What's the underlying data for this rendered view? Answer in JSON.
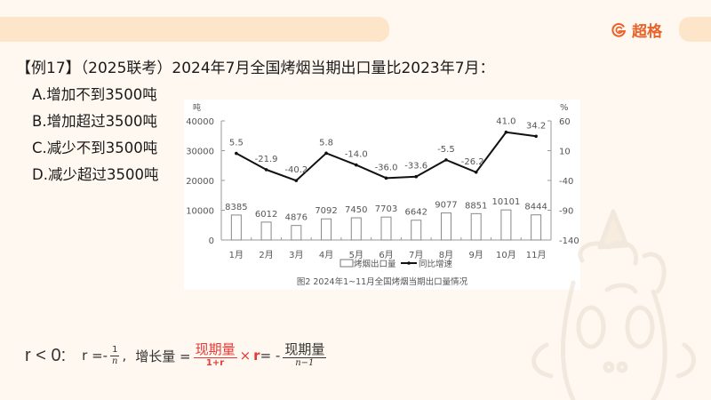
{
  "header": {
    "brand": "超格",
    "brand_icon": "g-logo-icon",
    "accent_color": "#e8622a",
    "bar_color": "#fde5c9"
  },
  "question": {
    "text": "【例17】（2025联考）2024年7月全国烤烟当期出口量比2023年7月：",
    "options": [
      {
        "key": "A",
        "label": "A.增加不到3500吨"
      },
      {
        "key": "B",
        "label": "B.增加超过3500吨"
      },
      {
        "key": "C",
        "label": "C.减少不到3500吨"
      },
      {
        "key": "D",
        "label": "D.减少超过3500吨"
      }
    ]
  },
  "chart_data": {
    "type": "bar",
    "title": "图2  2024年1~11月全国烤烟当期出口量情况",
    "categories": [
      "1月",
      "2月",
      "3月",
      "4月",
      "5月",
      "6月",
      "7月",
      "8月",
      "9月",
      "10月",
      "11月"
    ],
    "series": [
      {
        "name": "烤烟出口量",
        "type": "bar",
        "axis": "left",
        "values": [
          8385,
          6012,
          4876,
          7092,
          7450,
          7703,
          6642,
          9077,
          8851,
          10101,
          8444
        ]
      },
      {
        "name": "同比增速",
        "type": "line",
        "axis": "right",
        "values": [
          5.5,
          -21.9,
          -40.2,
          5.8,
          -14.0,
          -36.0,
          -33.6,
          -5.5,
          -26.2,
          41.0,
          34.2
        ]
      }
    ],
    "value_labels_bar": [
      "8385",
      "6012",
      "4876",
      "7092",
      "7450",
      "7703",
      "6642",
      "9077",
      "8851",
      "10101",
      "8444"
    ],
    "value_labels_line": [
      "5.5",
      "-21.9",
      "-40.2",
      "5.8",
      "-14.0",
      "-36.0",
      "-33.6",
      "-5.5",
      "-26.2",
      "41.0",
      "34.2"
    ],
    "ylabel": "吨",
    "y2label": "%",
    "ylim": [
      0,
      40000
    ],
    "y2lim": [
      -140,
      60
    ],
    "yticks": [
      "40000",
      "30000",
      "20000",
      "10000",
      "0"
    ],
    "y2ticks": [
      "60",
      "10",
      "-40",
      "-90",
      "-140"
    ],
    "legend": {
      "bar": "烤烟出口量",
      "line": "同比增速",
      "position": "bottom"
    },
    "grid": false
  },
  "formula": {
    "condition": "r < 0:",
    "r_eq": "r =-",
    "r_num": "1",
    "r_den": "n",
    "comma": ",",
    "growth_label": "增长量 =",
    "frac1_num": "现期量",
    "frac1_den": "1+r",
    "times": "×",
    "r_bold": "r",
    "eq_minus": "= -",
    "frac2_num": "现期量",
    "frac2_den": "n−1"
  }
}
